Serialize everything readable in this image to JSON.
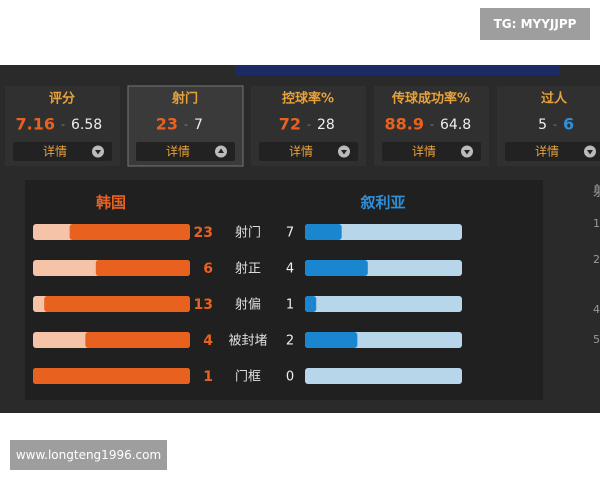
{
  "watermark_top": "TG: MYYJJPP",
  "watermark_bottom": "www.longteng1996.com",
  "separator": "-",
  "detail_label": "详情",
  "selected_tab": 1,
  "tabs": [
    {
      "label": "评分",
      "home": 7.16,
      "away": 6.58
    },
    {
      "label": "射门",
      "home": 23,
      "away": 7
    },
    {
      "label": "控球率%",
      "home": 72,
      "away": 28
    },
    {
      "label": "传球成功率%",
      "home": 88.9,
      "away": 64.8
    },
    {
      "label": "过人",
      "home": 5,
      "away": 6
    }
  ],
  "detail": {
    "home_team": "韩国",
    "away_team": "叙利亚",
    "rows": [
      {
        "label": "射门",
        "home": 23,
        "away": 7
      },
      {
        "label": "射正",
        "home": 6,
        "away": 4
      },
      {
        "label": "射偏",
        "home": 13,
        "away": 1
      },
      {
        "label": "被封堵",
        "home": 4,
        "away": 2
      },
      {
        "label": "门框",
        "home": 1,
        "away": 0
      }
    ]
  },
  "side_column": [
    "射",
    "1",
    "2",
    "4",
    "5"
  ]
}
